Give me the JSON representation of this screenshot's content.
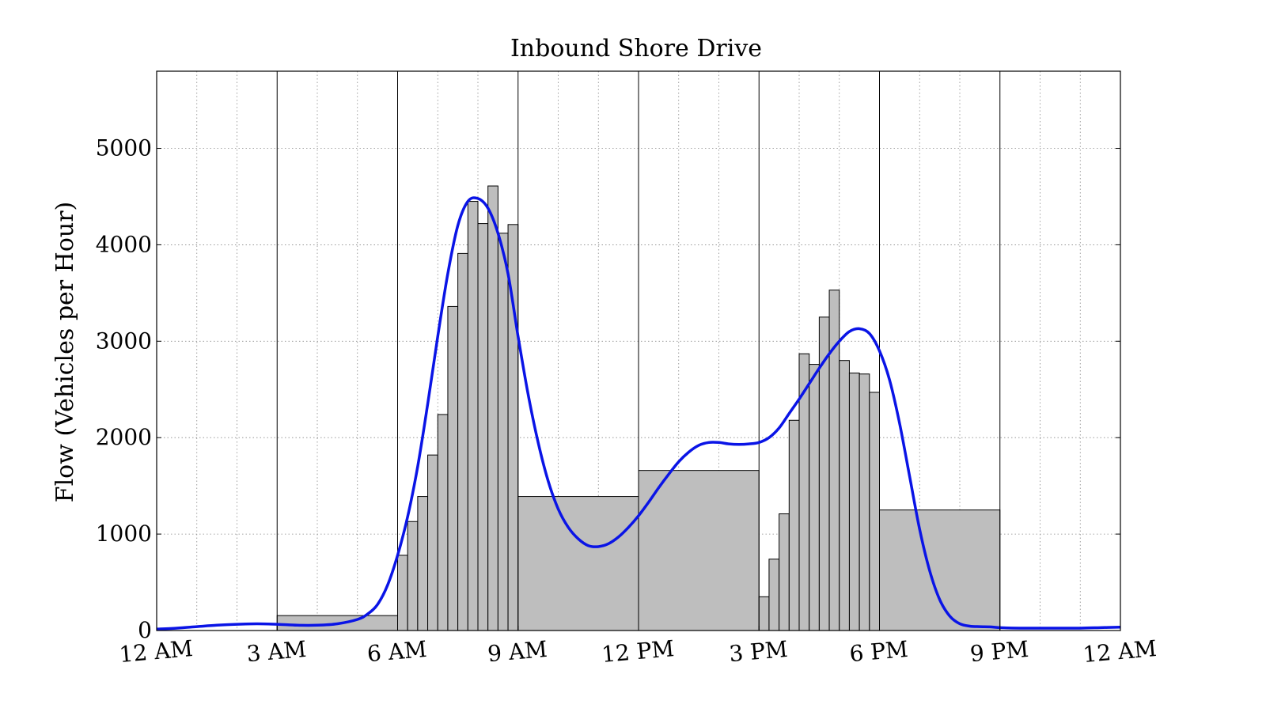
{
  "chart_data": {
    "type": "bar",
    "title": "Inbound Shore Drive",
    "xlabel": "",
    "ylabel": "Flow (Vehicles per Hour)",
    "xlim_hours": [
      0,
      24
    ],
    "ylim": [
      0,
      5800
    ],
    "x_ticks": [
      "12 AM",
      "3 AM",
      "6 AM",
      "9 AM",
      "12 PM",
      "3 PM",
      "6 PM",
      "9 PM",
      "12 AM"
    ],
    "y_ticks": [
      0,
      1000,
      2000,
      3000,
      4000,
      5000
    ],
    "grid": "dotted",
    "colors": {
      "bar_fill": "#bebebe",
      "bar_edge": "#000000",
      "curve": "#0a14e6",
      "grid": "#888888"
    },
    "histogram_bins": [
      {
        "start": 3.0,
        "end": 6.0,
        "value": 155
      },
      {
        "start": 6.0,
        "end": 6.25,
        "value": 780
      },
      {
        "start": 6.25,
        "end": 6.5,
        "value": 1130
      },
      {
        "start": 6.5,
        "end": 6.75,
        "value": 1390
      },
      {
        "start": 6.75,
        "end": 7.0,
        "value": 1820
      },
      {
        "start": 7.0,
        "end": 7.25,
        "value": 2240
      },
      {
        "start": 7.25,
        "end": 7.5,
        "value": 3360
      },
      {
        "start": 7.5,
        "end": 7.75,
        "value": 3910
      },
      {
        "start": 7.75,
        "end": 8.0,
        "value": 4450
      },
      {
        "start": 8.0,
        "end": 8.25,
        "value": 4220
      },
      {
        "start": 8.25,
        "end": 8.5,
        "value": 4610
      },
      {
        "start": 8.5,
        "end": 8.75,
        "value": 4120
      },
      {
        "start": 8.75,
        "end": 9.0,
        "value": 4210
      },
      {
        "start": 9.0,
        "end": 12.0,
        "value": 1390
      },
      {
        "start": 12.0,
        "end": 15.0,
        "value": 1660
      },
      {
        "start": 15.0,
        "end": 15.25,
        "value": 350
      },
      {
        "start": 15.25,
        "end": 15.5,
        "value": 740
      },
      {
        "start": 15.5,
        "end": 15.75,
        "value": 1210
      },
      {
        "start": 15.75,
        "end": 16.0,
        "value": 2180
      },
      {
        "start": 16.0,
        "end": 16.25,
        "value": 2870
      },
      {
        "start": 16.25,
        "end": 16.5,
        "value": 2760
      },
      {
        "start": 16.5,
        "end": 16.75,
        "value": 3250
      },
      {
        "start": 16.75,
        "end": 17.0,
        "value": 3530
      },
      {
        "start": 17.0,
        "end": 17.25,
        "value": 2800
      },
      {
        "start": 17.25,
        "end": 17.5,
        "value": 2670
      },
      {
        "start": 17.5,
        "end": 17.75,
        "value": 2660
      },
      {
        "start": 17.75,
        "end": 18.0,
        "value": 2470
      },
      {
        "start": 18.0,
        "end": 21.0,
        "value": 1250
      }
    ],
    "series": [
      {
        "type": "line",
        "hours": [
          0,
          0.5,
          1,
          1.5,
          2,
          2.5,
          3,
          3.5,
          4,
          4.5,
          5,
          5.25,
          5.5,
          5.75,
          6,
          6.25,
          6.5,
          6.75,
          7,
          7.25,
          7.5,
          7.75,
          8,
          8.25,
          8.5,
          8.75,
          9,
          9.25,
          9.5,
          9.75,
          10,
          10.25,
          10.5,
          10.75,
          11,
          11.25,
          11.5,
          11.75,
          12,
          12.25,
          12.5,
          12.75,
          13,
          13.25,
          13.5,
          13.75,
          14,
          14.25,
          14.5,
          14.75,
          15,
          15.25,
          15.5,
          15.75,
          16,
          16.25,
          16.5,
          16.75,
          17,
          17.25,
          17.5,
          17.75,
          18,
          18.25,
          18.5,
          18.75,
          19,
          19.25,
          19.5,
          19.75,
          20,
          20.25,
          20.5,
          20.75,
          21,
          21.5,
          22,
          22.5,
          23,
          23.5,
          24
        ],
        "values": [
          15,
          25,
          40,
          55,
          65,
          70,
          65,
          55,
          55,
          70,
          115,
          170,
          270,
          470,
          780,
          1180,
          1700,
          2350,
          3050,
          3700,
          4200,
          4450,
          4480,
          4380,
          4120,
          3700,
          3050,
          2450,
          1950,
          1550,
          1260,
          1070,
          950,
          880,
          870,
          900,
          970,
          1070,
          1190,
          1330,
          1480,
          1620,
          1750,
          1850,
          1920,
          1950,
          1950,
          1935,
          1930,
          1935,
          1950,
          2000,
          2100,
          2250,
          2400,
          2560,
          2720,
          2870,
          3000,
          3100,
          3130,
          3080,
          2900,
          2600,
          2150,
          1600,
          1050,
          620,
          320,
          150,
          70,
          45,
          40,
          38,
          30,
          25,
          25,
          25,
          25,
          30,
          35
        ]
      }
    ]
  }
}
